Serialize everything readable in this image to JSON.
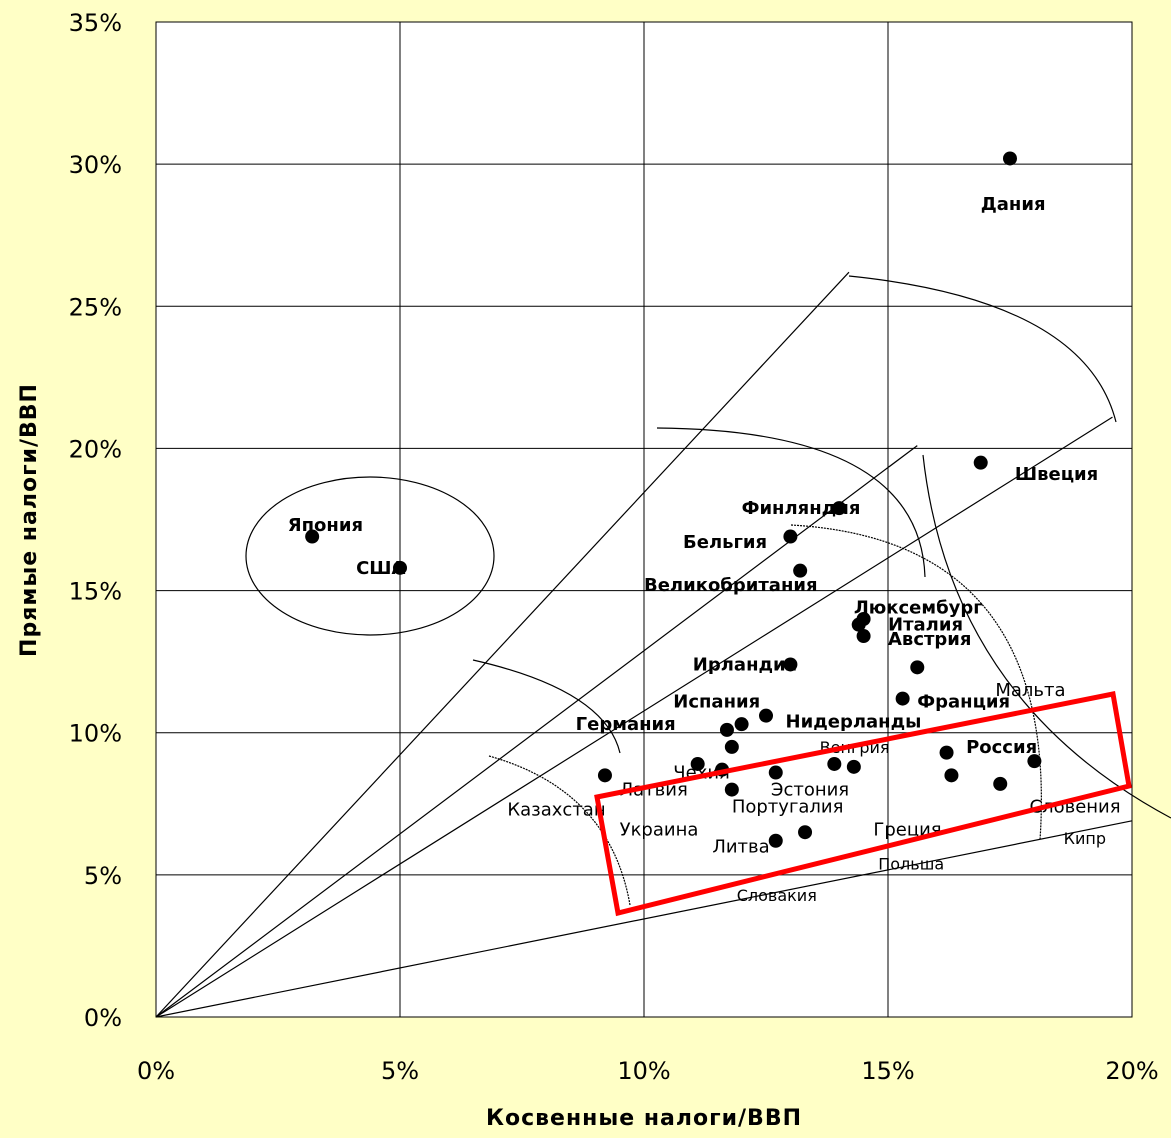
{
  "chart_data": {
    "type": "scatter",
    "xlabel": "Косвенные налоги/ВВП",
    "ylabel": "Прямые налоги/ВВП",
    "xlim": [
      0,
      20
    ],
    "ylim": [
      0,
      35
    ],
    "x_ticks": [
      "0%",
      "5%",
      "10%",
      "15%",
      "20%"
    ],
    "y_ticks": [
      "0%",
      "5%",
      "10%",
      "15%",
      "20%",
      "25%",
      "30%",
      "35%"
    ],
    "grid": true,
    "points": [
      {
        "x": 3.2,
        "y": 16.9
      },
      {
        "x": 5.0,
        "y": 15.8
      },
      {
        "x": 17.5,
        "y": 30.2
      },
      {
        "x": 16.9,
        "y": 19.5
      },
      {
        "x": 14.0,
        "y": 17.9
      },
      {
        "x": 13.0,
        "y": 16.9
      },
      {
        "x": 13.2,
        "y": 15.7
      },
      {
        "x": 14.4,
        "y": 13.8
      },
      {
        "x": 14.5,
        "y": 14.0
      },
      {
        "x": 14.5,
        "y": 13.4
      },
      {
        "x": 15.6,
        "y": 12.3
      },
      {
        "x": 13.0,
        "y": 12.4
      },
      {
        "x": 15.3,
        "y": 11.2
      },
      {
        "x": 12.5,
        "y": 10.6
      },
      {
        "x": 12.0,
        "y": 10.3
      },
      {
        "x": 11.7,
        "y": 10.1
      },
      {
        "x": 11.8,
        "y": 9.5
      },
      {
        "x": 16.2,
        "y": 9.3
      },
      {
        "x": 18.0,
        "y": 9.0
      },
      {
        "x": 11.1,
        "y": 8.9
      },
      {
        "x": 13.9,
        "y": 8.9
      },
      {
        "x": 14.3,
        "y": 8.8
      },
      {
        "x": 11.6,
        "y": 8.7
      },
      {
        "x": 9.2,
        "y": 8.5
      },
      {
        "x": 12.7,
        "y": 8.6
      },
      {
        "x": 16.3,
        "y": 8.5
      },
      {
        "x": 17.3,
        "y": 8.2
      },
      {
        "x": 11.8,
        "y": 8.0
      },
      {
        "x": 13.3,
        "y": 6.5
      },
      {
        "x": 12.7,
        "y": 6.2
      }
    ],
    "labels": [
      {
        "text": "Япония",
        "x": 2.7,
        "y": 17.3
      },
      {
        "text": "США",
        "x": 4.1,
        "y": 15.8
      },
      {
        "text": "Дания",
        "x": 16.9,
        "y": 28.6
      },
      {
        "text": "Швеция",
        "x": 17.6,
        "y": 19.1
      },
      {
        "text": "Финляндия",
        "x": 12.0,
        "y": 17.9
      },
      {
        "text": "Бельгия",
        "x": 10.8,
        "y": 16.7
      },
      {
        "text": "Великобритания",
        "x": 10.0,
        "y": 15.2
      },
      {
        "text": "Люксембург",
        "x": 14.3,
        "y": 14.4
      },
      {
        "text": "Италия",
        "x": 15.0,
        "y": 13.8
      },
      {
        "text": "Австрия",
        "x": 15.0,
        "y": 13.3
      },
      {
        "text": "Ирландия",
        "x": 11.0,
        "y": 12.4
      },
      {
        "text": "Испания",
        "x": 10.6,
        "y": 11.1
      },
      {
        "text": "Франция",
        "x": 15.6,
        "y": 11.1
      },
      {
        "text": "Мальта",
        "x": 17.2,
        "y": 11.5
      },
      {
        "text": "Германия",
        "x": 8.6,
        "y": 10.3
      },
      {
        "text": "Нидерланды",
        "x": 12.9,
        "y": 10.4
      },
      {
        "text": "Венгрия",
        "x": 13.6,
        "y": 9.5
      },
      {
        "text": "Россия",
        "x": 16.6,
        "y": 9.5
      },
      {
        "text": "Чехия",
        "x": 10.6,
        "y": 8.6
      },
      {
        "text": "Латвия",
        "x": 9.5,
        "y": 8.0
      },
      {
        "text": "Эстония",
        "x": 12.6,
        "y": 8.0
      },
      {
        "text": "Казахстан",
        "x": 7.2,
        "y": 7.3
      },
      {
        "text": "Португалия",
        "x": 11.8,
        "y": 7.4
      },
      {
        "text": "Словения",
        "x": 17.9,
        "y": 7.4
      },
      {
        "text": "Украина",
        "x": 9.5,
        "y": 6.6
      },
      {
        "text": "Греция",
        "x": 14.7,
        "y": 6.6
      },
      {
        "text": "Кипр",
        "x": 18.6,
        "y": 6.3
      },
      {
        "text": "Литва",
        "x": 11.4,
        "y": 6.0
      },
      {
        "text": "Польша",
        "x": 14.8,
        "y": 5.4
      },
      {
        "text": "Словакия",
        "x": 11.9,
        "y": 4.3
      }
    ],
    "highlight_color": "#FF0000"
  }
}
